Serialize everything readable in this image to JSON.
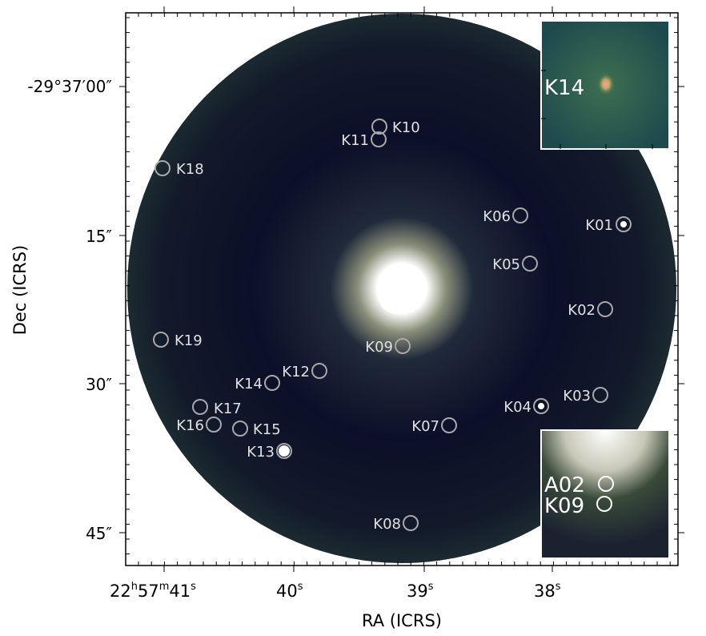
{
  "axes": {
    "xlabel": "RA (ICRS)",
    "ylabel": "Dec (ICRS)",
    "x_ticks": [
      {
        "h": "22",
        "m": "57",
        "s": "41",
        "label": ""
      },
      {
        "label": "40",
        "s": "s"
      },
      {
        "label": "39",
        "s": "s"
      },
      {
        "label": "38",
        "s": "s"
      }
    ],
    "y_ticks": [
      "-29°37′00″",
      "15″",
      "30″",
      "45″"
    ]
  },
  "sources": [
    {
      "id": "K01",
      "label": "K01"
    },
    {
      "id": "K02",
      "label": "K02"
    },
    {
      "id": "K03",
      "label": "K03"
    },
    {
      "id": "K04",
      "label": "K04"
    },
    {
      "id": "K05",
      "label": "K05"
    },
    {
      "id": "K06",
      "label": "K06"
    },
    {
      "id": "K07",
      "label": "K07"
    },
    {
      "id": "K08",
      "label": "K08"
    },
    {
      "id": "K09",
      "label": "K09"
    },
    {
      "id": "K10",
      "label": "K10"
    },
    {
      "id": "K11",
      "label": "K11"
    },
    {
      "id": "K12",
      "label": "K12"
    },
    {
      "id": "K13",
      "label": "K13"
    },
    {
      "id": "K14",
      "label": "K14"
    },
    {
      "id": "K15",
      "label": "K15"
    },
    {
      "id": "K16",
      "label": "K16"
    },
    {
      "id": "K17",
      "label": "K17"
    },
    {
      "id": "K18",
      "label": "K18"
    },
    {
      "id": "K19",
      "label": "K19"
    }
  ],
  "insets": {
    "top": {
      "label": "K14"
    },
    "bottom": {
      "labels": [
        "A02",
        "K09"
      ]
    }
  },
  "colors": {
    "background_disk": "#0c0f26",
    "inset_top_bg": "#2a5a45",
    "marker": "#a8a8a8"
  }
}
